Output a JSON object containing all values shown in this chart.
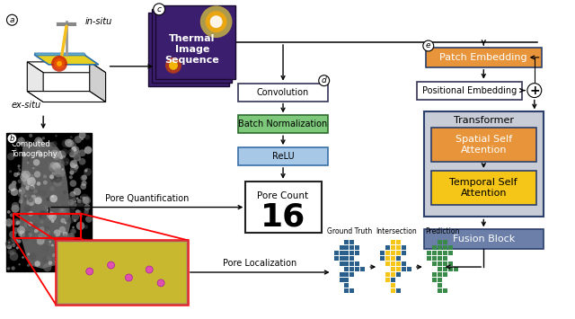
{
  "colors": {
    "thermal_bg": "#3b1f6e",
    "thermal_bg2": "#2a1255",
    "batch_norm_box": "#7dc87a",
    "relu_box": "#a8c8e8",
    "patch_embed_box": "#e8943a",
    "transformer_bg": "#c8ccd6",
    "spatial_attn_box": "#e8943a",
    "temporal_attn_box": "#f5c518",
    "fusion_box": "#6b7fa8",
    "ground_truth_color": "#2a5f8c",
    "intersection_yellow": "#f5c518",
    "prediction_color": "#3a8a4a",
    "arrow_color": "#000000"
  },
  "labels": {
    "a": "a",
    "b": "b",
    "c": "c",
    "d": "d",
    "e": "e",
    "in_situ": "in-situ",
    "ex_situ": "ex-situ",
    "thermal": "Thermal\nImage\nSequence",
    "convolution": "Convolution",
    "batch_norm": "Batch Normalization",
    "relu": "ReLU",
    "pore_count": "Pore Count",
    "pore_number": "16",
    "patch_embed": "Patch Embedding",
    "pos_embed": "Positional Embedding",
    "transformer": "Transformer",
    "spatial_attn": "Spatial Self\nAttention",
    "temporal_attn": "Temporal Self\nAttention",
    "fusion": "Fusion Block",
    "ct": "Computed\nTomography",
    "pore_quant": "Pore Quantification",
    "pore_local": "Pore Localization",
    "ground_truth": "Ground Truth",
    "intersection": "Intersection",
    "prediction": "Prediction"
  }
}
